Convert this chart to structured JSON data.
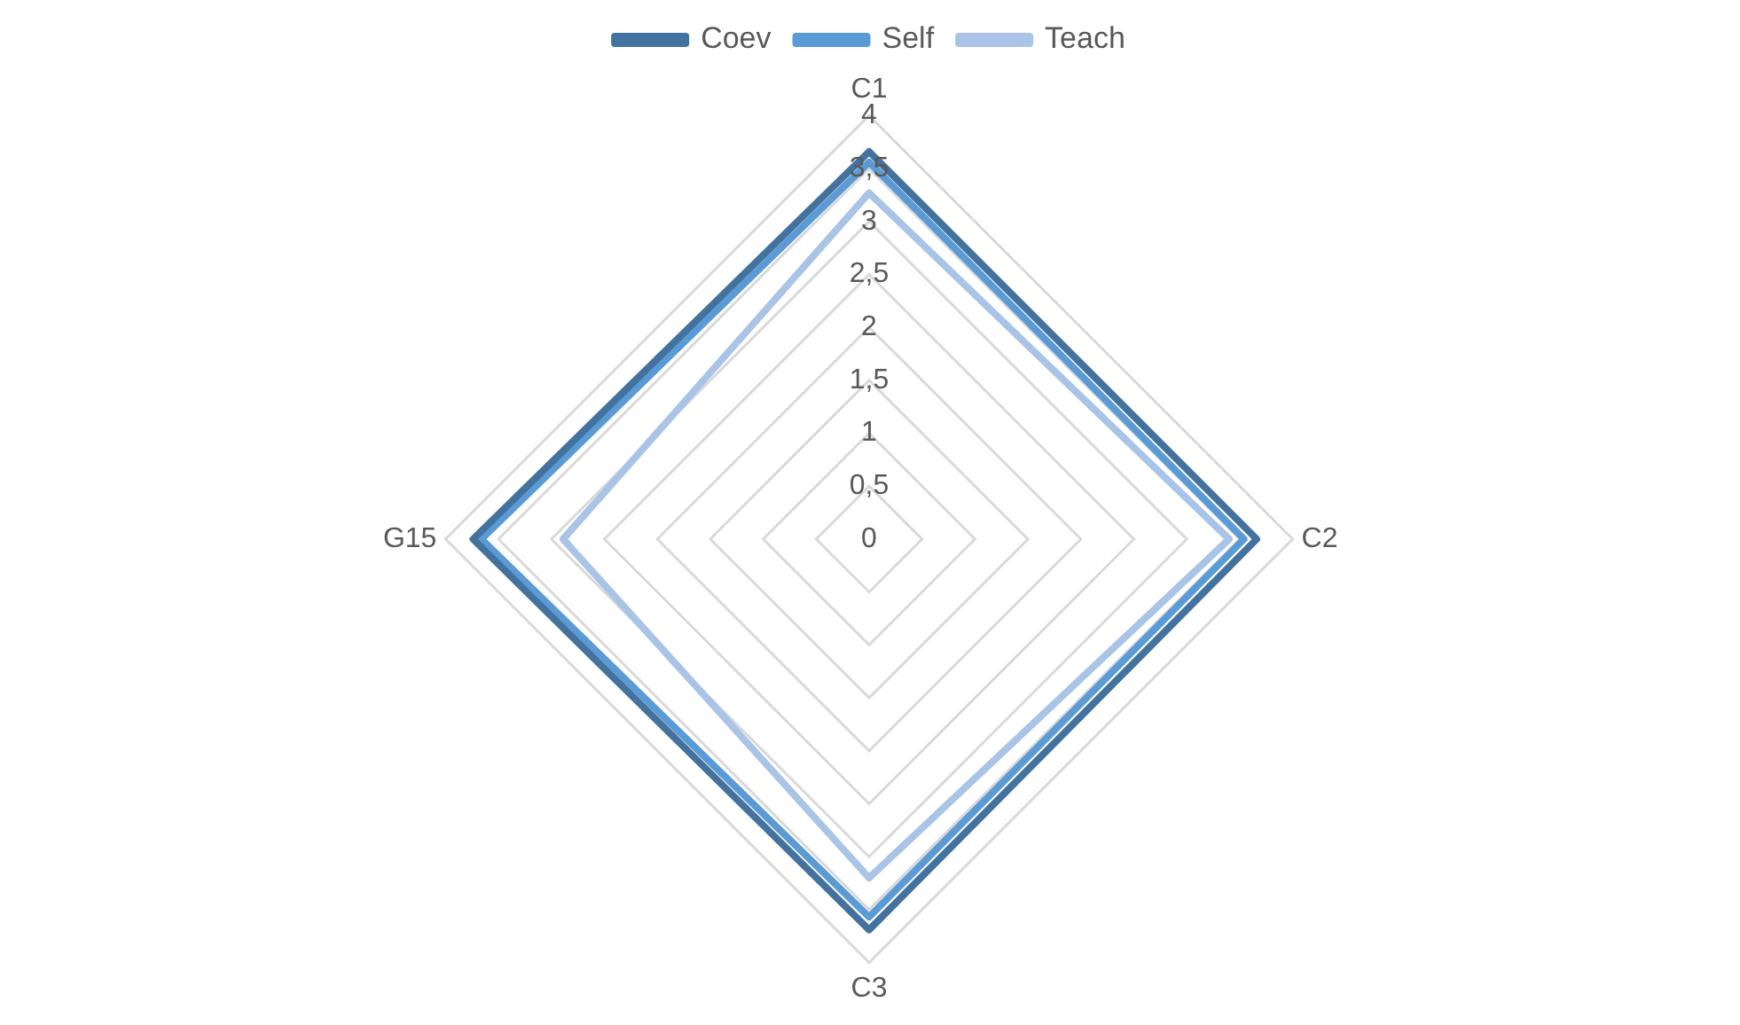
{
  "chart_data": {
    "type": "radar",
    "categories": [
      "C1",
      "C2",
      "C3",
      "G15"
    ],
    "series": [
      {
        "name": "Coev",
        "color": "#44729f",
        "values": [
          3.66,
          3.66,
          3.69,
          3.74
        ]
      },
      {
        "name": "Self",
        "color": "#5b9bd5",
        "values": [
          3.56,
          3.54,
          3.57,
          3.66
        ]
      },
      {
        "name": "Teach",
        "color": "#a9c4e6",
        "values": [
          3.27,
          3.4,
          3.2,
          2.89
        ]
      }
    ],
    "ylim": [
      0,
      4
    ],
    "yticks": [
      0,
      {
        "value": 0.5,
        "label": "0,5"
      },
      1,
      {
        "value": 1.5,
        "label": "1,5"
      },
      2,
      {
        "value": 2.5,
        "label": "2,5"
      },
      3,
      {
        "value": 3.5,
        "label": "3,5"
      },
      4
    ],
    "grid": true,
    "legend": "top",
    "marker": "none",
    "line_style": "solid"
  }
}
